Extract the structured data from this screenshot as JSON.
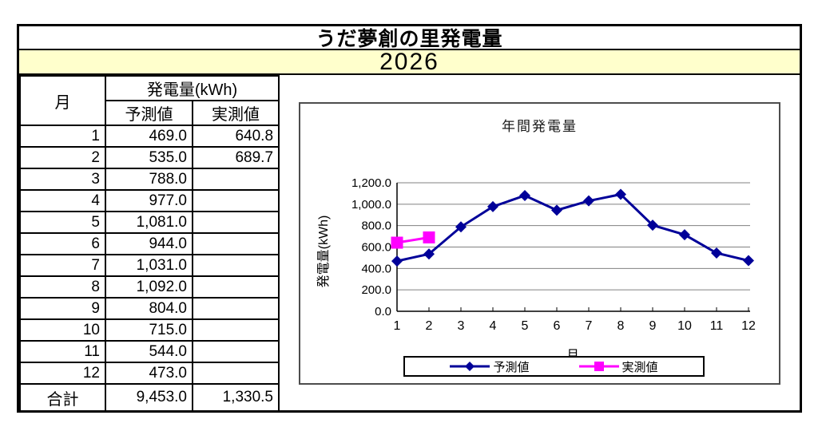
{
  "title": "うだ夢創の里発電量",
  "year": "2026",
  "table": {
    "col_month": "月",
    "col_group": "発電量(kWh)",
    "col_forecast": "予測値",
    "col_actual": "実測値",
    "rows": [
      {
        "month": "1",
        "forecast": "469.0",
        "actual": "640.8"
      },
      {
        "month": "2",
        "forecast": "535.0",
        "actual": "689.7"
      },
      {
        "month": "3",
        "forecast": "788.0",
        "actual": ""
      },
      {
        "month": "4",
        "forecast": "977.0",
        "actual": ""
      },
      {
        "month": "5",
        "forecast": "1,081.0",
        "actual": ""
      },
      {
        "month": "6",
        "forecast": "944.0",
        "actual": ""
      },
      {
        "month": "7",
        "forecast": "1,031.0",
        "actual": ""
      },
      {
        "month": "8",
        "forecast": "1,092.0",
        "actual": ""
      },
      {
        "month": "9",
        "forecast": "804.0",
        "actual": ""
      },
      {
        "month": "10",
        "forecast": "715.0",
        "actual": ""
      },
      {
        "month": "11",
        "forecast": "544.0",
        "actual": ""
      },
      {
        "month": "12",
        "forecast": "473.0",
        "actual": ""
      }
    ],
    "total": {
      "label": "合計",
      "forecast": "9,453.0",
      "actual": "1,330.5"
    }
  },
  "chart_data": {
    "type": "line",
    "title": "年間発電量",
    "xlabel": "月",
    "ylabel": "発電量(kWh)",
    "x": [
      1,
      2,
      3,
      4,
      5,
      6,
      7,
      8,
      9,
      10,
      11,
      12
    ],
    "series": [
      {
        "name": "予測値",
        "color": "#000099",
        "marker": "diamond",
        "values": [
          469.0,
          535.0,
          788.0,
          977.0,
          1081.0,
          944.0,
          1031.0,
          1092.0,
          804.0,
          715.0,
          544.0,
          473.0
        ]
      },
      {
        "name": "実測値",
        "color": "#FF00FF",
        "marker": "square",
        "values": [
          640.8,
          689.7,
          null,
          null,
          null,
          null,
          null,
          null,
          null,
          null,
          null,
          null
        ]
      }
    ],
    "ylim": [
      0,
      1200
    ],
    "ytick_step": 200,
    "ytick_labels": [
      "0.0",
      "200.0",
      "400.0",
      "600.0",
      "800.0",
      "1,000.0",
      "1,200.0"
    ],
    "grid": true,
    "legend_position": "bottom"
  },
  "colors": {
    "year_band_bg": "#FFFFCC",
    "forecast_series": "#000099",
    "actual_series": "#FF00FF",
    "gridline": "#808080",
    "chart_border": "#4d4d4d",
    "table_border": "#000000"
  }
}
